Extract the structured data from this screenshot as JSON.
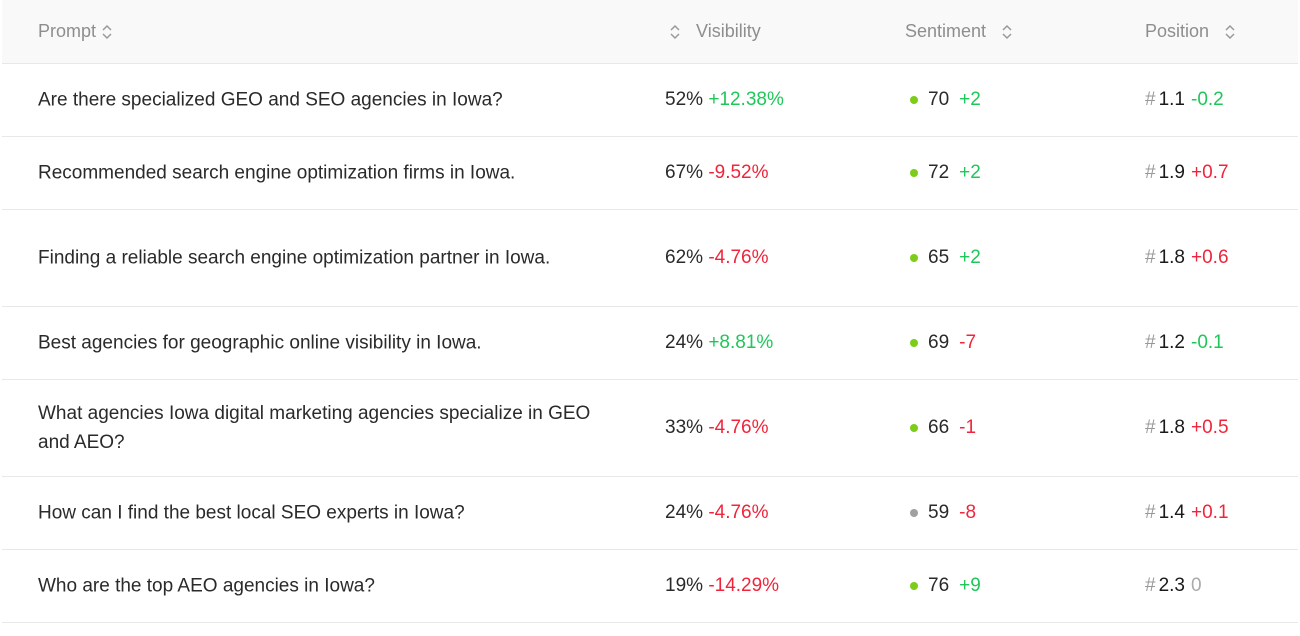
{
  "header": {
    "prompt": "Prompt",
    "visibility": "Visibility",
    "sentiment": "Sentiment",
    "position": "Position"
  },
  "colors": {
    "up": "#1fc75a",
    "down": "#f0243a",
    "neutral": "#aaaaaa",
    "dot_positive": "#7ccc1a",
    "dot_neutral": "#a0a0a0"
  },
  "rows": [
    {
      "prompt": "Are there specialized GEO and SEO agencies in Iowa?",
      "visibility": "52%",
      "visibility_change": "+12.38%",
      "vis_dir": "up",
      "sentiment": "70",
      "sentiment_change": "+2",
      "sent_dir": "up",
      "dot": "positive",
      "position_hash": "#",
      "position": "1.1",
      "position_change": "-0.2",
      "pos_dir": "up"
    },
    {
      "prompt": "Recommended search engine optimization firms in Iowa.",
      "visibility": "67%",
      "visibility_change": "-9.52%",
      "vis_dir": "down",
      "sentiment": "72",
      "sentiment_change": "+2",
      "sent_dir": "up",
      "dot": "positive",
      "position_hash": "#",
      "position": "1.9",
      "position_change": "+0.7",
      "pos_dir": "down"
    },
    {
      "prompt": "Finding a reliable search engine optimization partner in Iowa.",
      "visibility": "62%",
      "visibility_change": "-4.76%",
      "vis_dir": "down",
      "sentiment": "65",
      "sentiment_change": "+2",
      "sent_dir": "up",
      "dot": "positive",
      "position_hash": "#",
      "position": "1.8",
      "position_change": "+0.6",
      "pos_dir": "down"
    },
    {
      "prompt": "Best agencies for geographic online visibility in Iowa.",
      "visibility": "24%",
      "visibility_change": "+8.81%",
      "vis_dir": "up",
      "sentiment": "69",
      "sentiment_change": "-7",
      "sent_dir": "down",
      "dot": "positive",
      "position_hash": "#",
      "position": "1.2",
      "position_change": "-0.1",
      "pos_dir": "up"
    },
    {
      "prompt": "What agencies Iowa digital marketing agencies specialize in GEO and AEO?",
      "visibility": "33%",
      "visibility_change": "-4.76%",
      "vis_dir": "down",
      "sentiment": "66",
      "sentiment_change": "-1",
      "sent_dir": "down",
      "dot": "positive",
      "position_hash": "#",
      "position": "1.8",
      "position_change": "+0.5",
      "pos_dir": "down"
    },
    {
      "prompt": "How can I find the best local SEO experts in Iowa?",
      "visibility": "24%",
      "visibility_change": "-4.76%",
      "vis_dir": "down",
      "sentiment": "59",
      "sentiment_change": "-8",
      "sent_dir": "down",
      "dot": "neutral",
      "position_hash": "#",
      "position": "1.4",
      "position_change": "+0.1",
      "pos_dir": "down"
    },
    {
      "prompt": "Who are the top AEO agencies in Iowa?",
      "visibility": "19%",
      "visibility_change": "-14.29%",
      "vis_dir": "down",
      "sentiment": "76",
      "sentiment_change": "+9",
      "sent_dir": "up",
      "dot": "positive",
      "position_hash": "#",
      "position": "2.3",
      "position_change": "0",
      "pos_dir": "zero"
    }
  ]
}
